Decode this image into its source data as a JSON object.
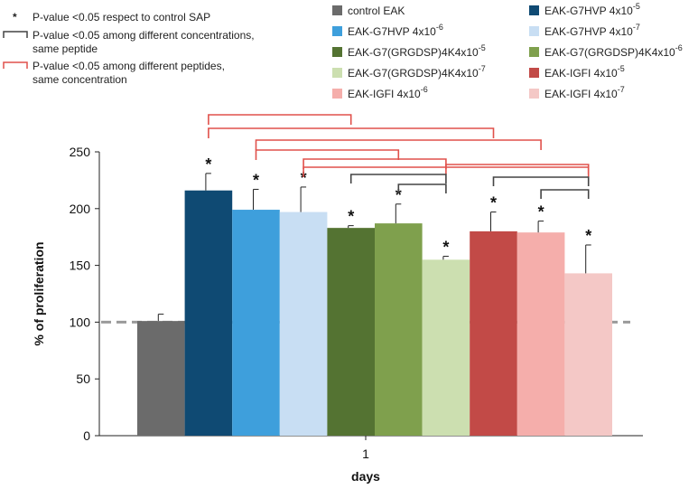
{
  "chart_data": {
    "type": "bar",
    "xlabel": "days",
    "ylabel": "% of proliferation",
    "categories": [
      "1"
    ],
    "ylim": [
      0,
      250
    ],
    "yticks": [
      0,
      50,
      100,
      150,
      200,
      250
    ],
    "reference_line": 100,
    "series": [
      {
        "name": "control EAK",
        "color": "#6b6b6b",
        "value": 101,
        "error": 6,
        "star": false
      },
      {
        "name": "EAK-G7HVP 4x10",
        "exp": "-5",
        "color": "#0f4a73",
        "value": 216,
        "error": 15,
        "star": true
      },
      {
        "name": "EAK-G7HVP 4x10",
        "exp": "-6",
        "color": "#3e9fdc",
        "value": 199,
        "error": 18,
        "star": true
      },
      {
        "name": "EAK-G7HVP 4x10",
        "exp": "-7",
        "color": "#c8def3",
        "value": 197,
        "error": 22,
        "star": true
      },
      {
        "name": "EAK-G7(GRGDSP)4K4x10",
        "exp": "-5",
        "color": "#547332",
        "value": 183,
        "error": 2,
        "star": true
      },
      {
        "name": "EAK-G7(GRGDSP)4K4x10",
        "exp": "-6",
        "color": "#7fa04d",
        "value": 187,
        "error": 17,
        "star": true
      },
      {
        "name": "EAK-G7(GRGDSP)4K4x10",
        "exp": "-7",
        "color": "#ccdfb0",
        "value": 155,
        "error": 3,
        "star": true
      },
      {
        "name": "EAK-IGFI 4x10",
        "exp": "-5",
        "color": "#c24a47",
        "value": 180,
        "error": 17,
        "star": true
      },
      {
        "name": "EAK-IGFI 4x10",
        "exp": "-6",
        "color": "#f5aeab",
        "value": 179,
        "error": 10,
        "star": true
      },
      {
        "name": "EAK-IGFI 4x10",
        "exp": "-7",
        "color": "#f4c8c6",
        "value": 143,
        "error": 25,
        "star": true
      }
    ],
    "notes": [
      {
        "symbol": "*",
        "text": "P-value <0.05 respect to control SAP"
      },
      {
        "symbol": "black-bracket",
        "color": "#444444",
        "text_lines": [
          "P-value <0.05 among different concentrations,",
          "same peptide"
        ]
      },
      {
        "symbol": "red-bracket",
        "color": "#e0514b",
        "text_lines": [
          "P-value <0.05 among different peptides,",
          "same concentration"
        ]
      }
    ],
    "brackets": {
      "red": [
        [
          1,
          4
        ],
        [
          1,
          7
        ],
        [
          2,
          5
        ],
        [
          2,
          8
        ],
        [
          3,
          6
        ],
        [
          3,
          9
        ],
        [
          6,
          9
        ]
      ],
      "black": [
        [
          4,
          6
        ],
        [
          5,
          6
        ],
        [
          7,
          9
        ],
        [
          8,
          9
        ]
      ]
    },
    "colors": {
      "red_bracket": "#e0514b",
      "black_bracket": "#444444",
      "reference_line": "#9a9a9a"
    }
  }
}
